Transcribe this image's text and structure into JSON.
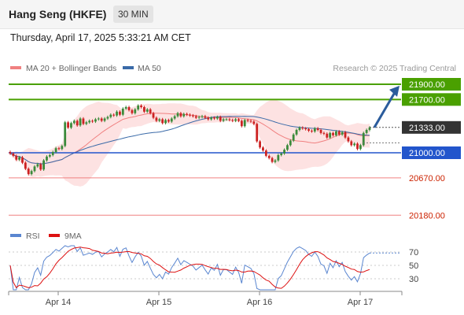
{
  "header": {
    "title": "Hang Seng (HKFE)",
    "timeframe": "30 MIN",
    "datetime": "Thursday, April 17, 2025 5:33:21 AM CET"
  },
  "legend": {
    "ma20": "MA 20 + Bollinger Bands",
    "ma50": "MA 50",
    "source": "Research © 2025 Trading Central"
  },
  "colors": {
    "bb_fill": "#fde2e2",
    "ma20": "#f08080",
    "ma50": "#3a6aa8",
    "green": "#4aa000",
    "blue": "#2255cc",
    "red": "#f08080",
    "current": "#333333",
    "arrow": "#2b5c9c",
    "rsi": "#5a86d0",
    "rsi_ma": "#dd1111"
  },
  "chart_data": {
    "type": "candlestick",
    "x_labels": [
      "Apr 14",
      "Apr 15",
      "Apr 16",
      "Apr 17"
    ],
    "price_levels": [
      {
        "value": "21900.00",
        "style": "green-box"
      },
      {
        "value": "21700.00",
        "style": "green-box"
      },
      {
        "value": "21333.00",
        "style": "current"
      },
      {
        "value": "21000.00",
        "style": "blue-box"
      },
      {
        "value": "20670.00",
        "style": "red-text"
      },
      {
        "value": "20180.00",
        "style": "red-text"
      }
    ],
    "closes": [
      20990,
      20960,
      20910,
      20940,
      20870,
      20790,
      20720,
      20760,
      20820,
      20850,
      20780,
      20900,
      20950,
      20970,
      21010,
      21060,
      21050,
      21090,
      21400,
      21330,
      21390,
      21420,
      21360,
      21450,
      21380,
      21400,
      21420,
      21410,
      21440,
      21450,
      21420,
      21450,
      21470,
      21500,
      21490,
      21540,
      21500,
      21580,
      21600,
      21560,
      21520,
      21570,
      21620,
      21600,
      21540,
      21570,
      21520,
      21460,
      21420,
      21440,
      21390,
      21430,
      21410,
      21450,
      21480,
      21520,
      21480,
      21510,
      21500,
      21490,
      21480,
      21460,
      21470,
      21480,
      21460,
      21440,
      21460,
      21450,
      21470,
      21420,
      21440,
      21440,
      21430,
      21420,
      21440,
      21420,
      21350,
      21430,
      21420,
      21410,
      21380,
      21150,
      21070,
      21030,
      20960,
      20930,
      20880,
      20900,
      20970,
      20990,
      21040,
      21100,
      21160,
      21240,
      21300,
      21330,
      21320,
      21310,
      21290,
      21280,
      21320,
      21300,
      21260,
      21250,
      21200,
      21260,
      21230,
      21280,
      21240,
      21270,
      21200,
      21150,
      21100,
      21120,
      21050,
      21100,
      21260,
      21300,
      21333
    ],
    "rsi": {
      "name": "RSI",
      "ma_name": "9MA",
      "levels": [
        "70",
        "50",
        "30"
      ]
    },
    "annotation": "arrow toward 21900.00"
  }
}
